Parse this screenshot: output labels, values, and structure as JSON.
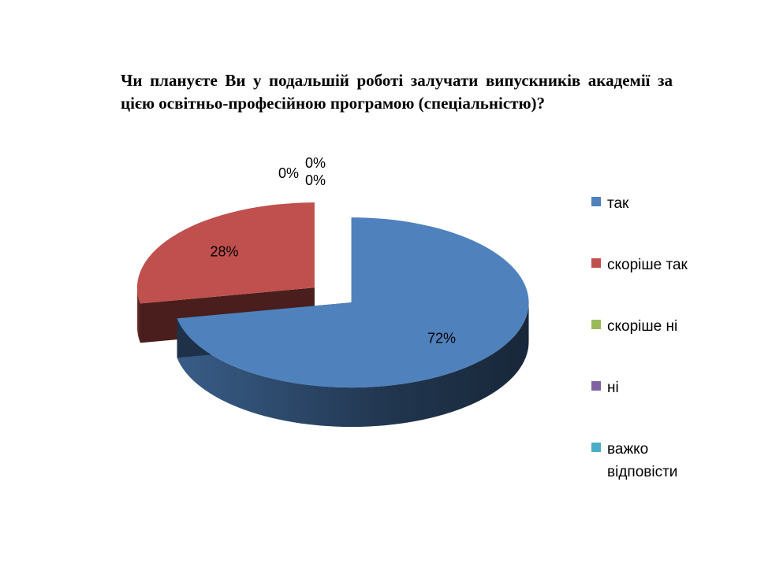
{
  "chart_data": {
    "type": "pie",
    "title": "Чи плануєте Ви у подальшій роботі залучати випускників академії за цією освітньо-професійною програмою (спеціальністю)?",
    "categories": [
      "так",
      "скоріше так",
      "скоріше ні",
      "ні",
      "важко відповісти"
    ],
    "values": [
      72,
      28,
      0,
      0,
      0
    ],
    "data_labels": [
      "72%",
      "28%",
      "0%",
      "0%",
      "0%"
    ],
    "colors": [
      "#4f81bd",
      "#c0504d",
      "#9bbb59",
      "#8064a2",
      "#4bacc6"
    ],
    "legend_position": "right",
    "exploded": true,
    "three_d": true
  }
}
